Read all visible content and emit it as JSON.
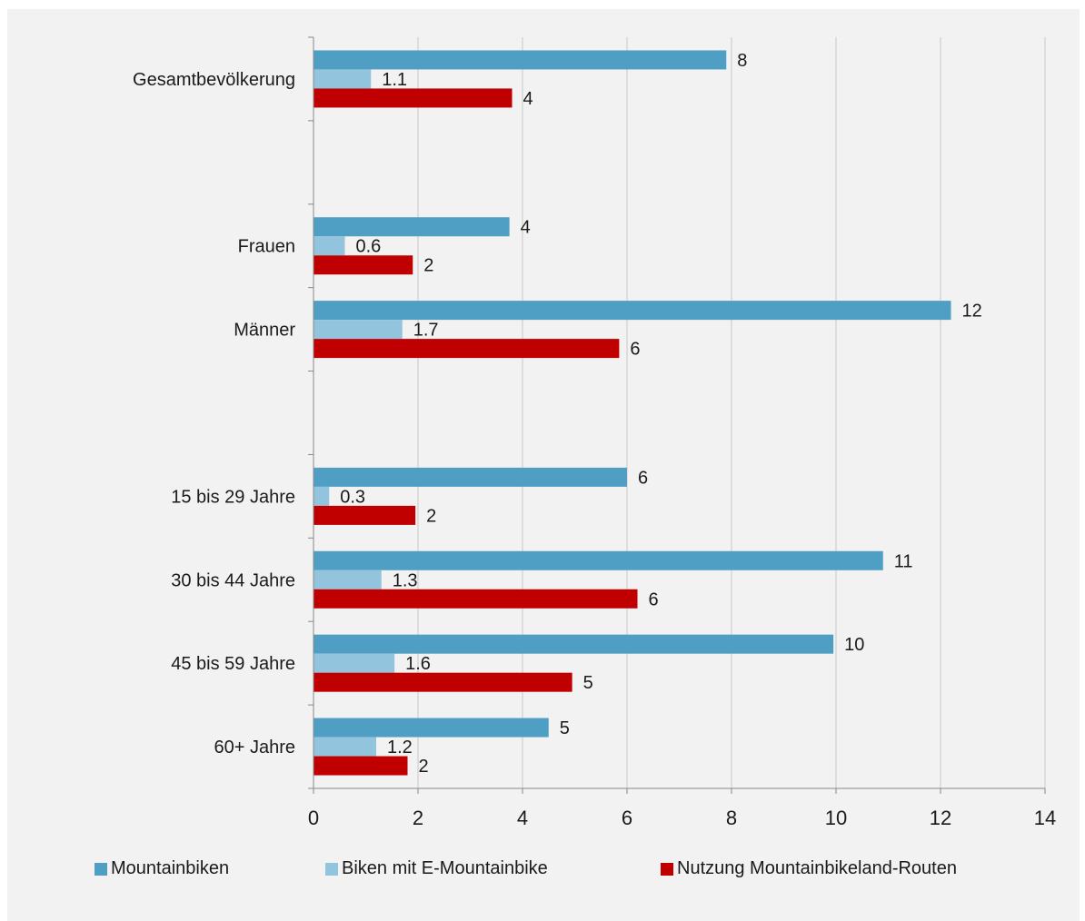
{
  "chart_data": {
    "type": "bar",
    "orientation": "horizontal",
    "categories": [
      "Gesamtbevölkerung",
      "",
      "Frauen",
      "Männer",
      "",
      "15 bis 29 Jahre",
      "30 bis 44 Jahre",
      "45 bis 59 Jahre",
      "60+ Jahre"
    ],
    "series": [
      {
        "name": "Mountainbiken",
        "color": "#4f9ec4",
        "values": [
          7.9,
          null,
          3.75,
          12.2,
          null,
          6.0,
          10.9,
          9.95,
          4.5
        ],
        "labels": [
          "8",
          "",
          "4",
          "12",
          "",
          "6",
          "11",
          "10",
          "5"
        ]
      },
      {
        "name": "Biken mit E-Mountainbike",
        "color": "#93c4dd",
        "values": [
          1.1,
          null,
          0.6,
          1.7,
          null,
          0.3,
          1.3,
          1.55,
          1.2
        ],
        "labels": [
          "1.1",
          "",
          "0.6",
          "1.7",
          "",
          "0.3",
          "1.3",
          "1.6",
          "1.2"
        ]
      },
      {
        "name": "Nutzung Mountainbikeland-Routen",
        "color": "#c00000",
        "values": [
          3.8,
          null,
          1.9,
          5.85,
          null,
          1.95,
          6.2,
          4.95,
          1.8
        ],
        "labels": [
          "4",
          "",
          "2",
          "6",
          "",
          "2",
          "6",
          "5",
          "2"
        ]
      }
    ],
    "xlim": [
      0,
      14
    ],
    "xticks": [
      "0",
      "2",
      "4",
      "6",
      "8",
      "10",
      "12",
      "14"
    ],
    "grid": true,
    "legend": "bottom"
  }
}
